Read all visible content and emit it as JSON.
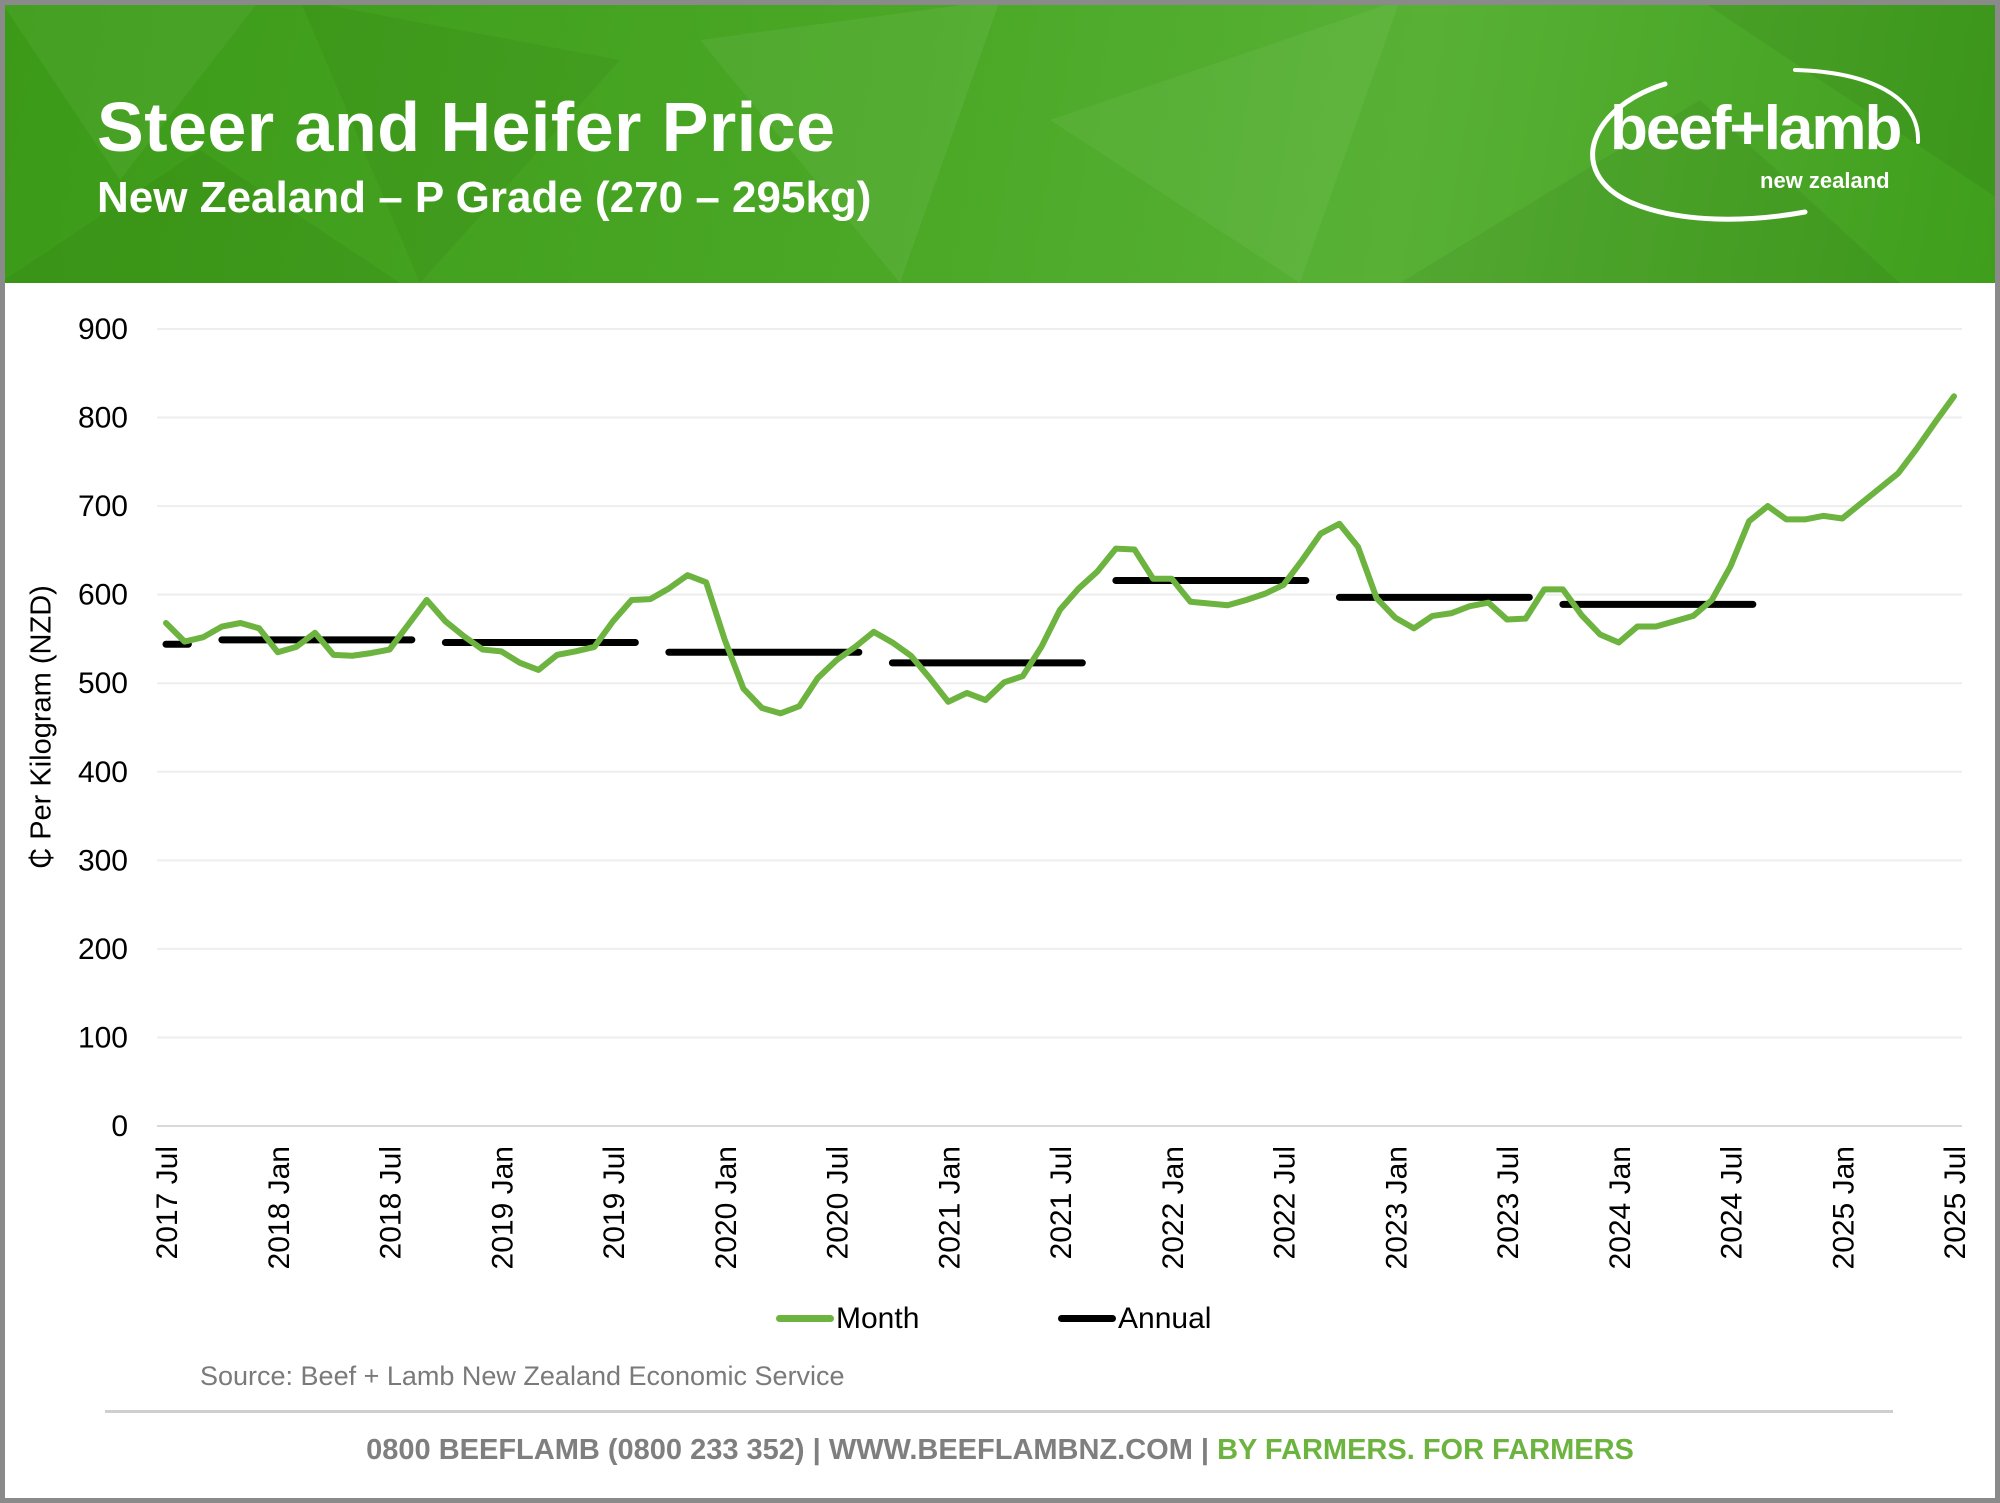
{
  "header": {
    "title": "Steer and Heifer Price",
    "subtitle": "New Zealand – P Grade (270 – 295kg)",
    "logo_main": "beef+lamb",
    "logo_sub": "new zealand"
  },
  "colors": {
    "month": "#6db33f",
    "annual": "#000000",
    "header_green": "#4aa826",
    "grid": "#eeeeee"
  },
  "chart_data": {
    "type": "line",
    "title": "Steer and Heifer Price",
    "subtitle": "New Zealand – P Grade (270 – 295kg)",
    "xlabel": "",
    "ylabel": "₵ Per Kilogram (NZD)",
    "ylim": [
      0,
      900
    ],
    "yticks": [
      "0",
      "100",
      "200",
      "300",
      "400",
      "500",
      "600",
      "700",
      "800",
      "900"
    ],
    "x_start": "2017 Jul",
    "x_end": "2025 Jul",
    "xticks": [
      {
        "month_index": 0,
        "label": "2017 Jul"
      },
      {
        "month_index": 6,
        "label": "2018 Jan"
      },
      {
        "month_index": 12,
        "label": "2018 Jul"
      },
      {
        "month_index": 18,
        "label": "2019 Jan"
      },
      {
        "month_index": 24,
        "label": "2019 Jul"
      },
      {
        "month_index": 30,
        "label": "2020 Jan"
      },
      {
        "month_index": 36,
        "label": "2020 Jul"
      },
      {
        "month_index": 42,
        "label": "2021 Jan"
      },
      {
        "month_index": 48,
        "label": "2021 Jul"
      },
      {
        "month_index": 54,
        "label": "2022 Jan"
      },
      {
        "month_index": 60,
        "label": "2022 Jul"
      },
      {
        "month_index": 66,
        "label": "2023 Jan"
      },
      {
        "month_index": 72,
        "label": "2023 Jul"
      },
      {
        "month_index": 78,
        "label": "2024 Jan"
      },
      {
        "month_index": 84,
        "label": "2024 Jul"
      },
      {
        "month_index": 90,
        "label": "2025 Jan"
      },
      {
        "month_index": 96,
        "label": "2025 Jul"
      }
    ],
    "grid": true,
    "legend_position": "bottom",
    "series": [
      {
        "name": "Month",
        "color": "#6db33f",
        "values": [
          568,
          547,
          552,
          564,
          568,
          562,
          535,
          541,
          557,
          532,
          531,
          534,
          538,
          566,
          594,
          570,
          553,
          538,
          536,
          523,
          515,
          532,
          536,
          541,
          570,
          594,
          595,
          607,
          622,
          614,
          549,
          494,
          472,
          466,
          474,
          506,
          526,
          541,
          558,
          546,
          531,
          506,
          479,
          489,
          481,
          501,
          508,
          541,
          583,
          607,
          626,
          652,
          651,
          618,
          618,
          592,
          590,
          588,
          594,
          601,
          611,
          639,
          669,
          680,
          654,
          596,
          574,
          562,
          576,
          579,
          587,
          591,
          572,
          573,
          606,
          606,
          577,
          555,
          546,
          564,
          564,
          570,
          576,
          594,
          632,
          683,
          700,
          685,
          685,
          689,
          686,
          703,
          720,
          737,
          765,
          795,
          824
        ]
      },
      {
        "name": "Annual",
        "color": "#000000",
        "segments": [
          {
            "start_month_index": 0,
            "end_month_index": 1.2,
            "value": 544
          },
          {
            "start_month_index": 3,
            "end_month_index": 13.2,
            "value": 549
          },
          {
            "start_month_index": 15,
            "end_month_index": 25.2,
            "value": 546
          },
          {
            "start_month_index": 27,
            "end_month_index": 37.2,
            "value": 535
          },
          {
            "start_month_index": 39,
            "end_month_index": 49.2,
            "value": 523
          },
          {
            "start_month_index": 51,
            "end_month_index": 61.2,
            "value": 616
          },
          {
            "start_month_index": 63,
            "end_month_index": 73.2,
            "value": 597
          },
          {
            "start_month_index": 75,
            "end_month_index": 85.2,
            "value": 589
          }
        ]
      }
    ]
  },
  "legend": {
    "month": "Month",
    "annual": "Annual"
  },
  "source": "Source: Beef + Lamb New Zealand Economic Service",
  "footer": {
    "phone": "0800 BEEFLAMB (0800 233 352)",
    "sep": " | ",
    "web": "WWW.BEEFLAMBNZ.COM",
    "tagline": "BY FARMERS. FOR FARMERS"
  }
}
